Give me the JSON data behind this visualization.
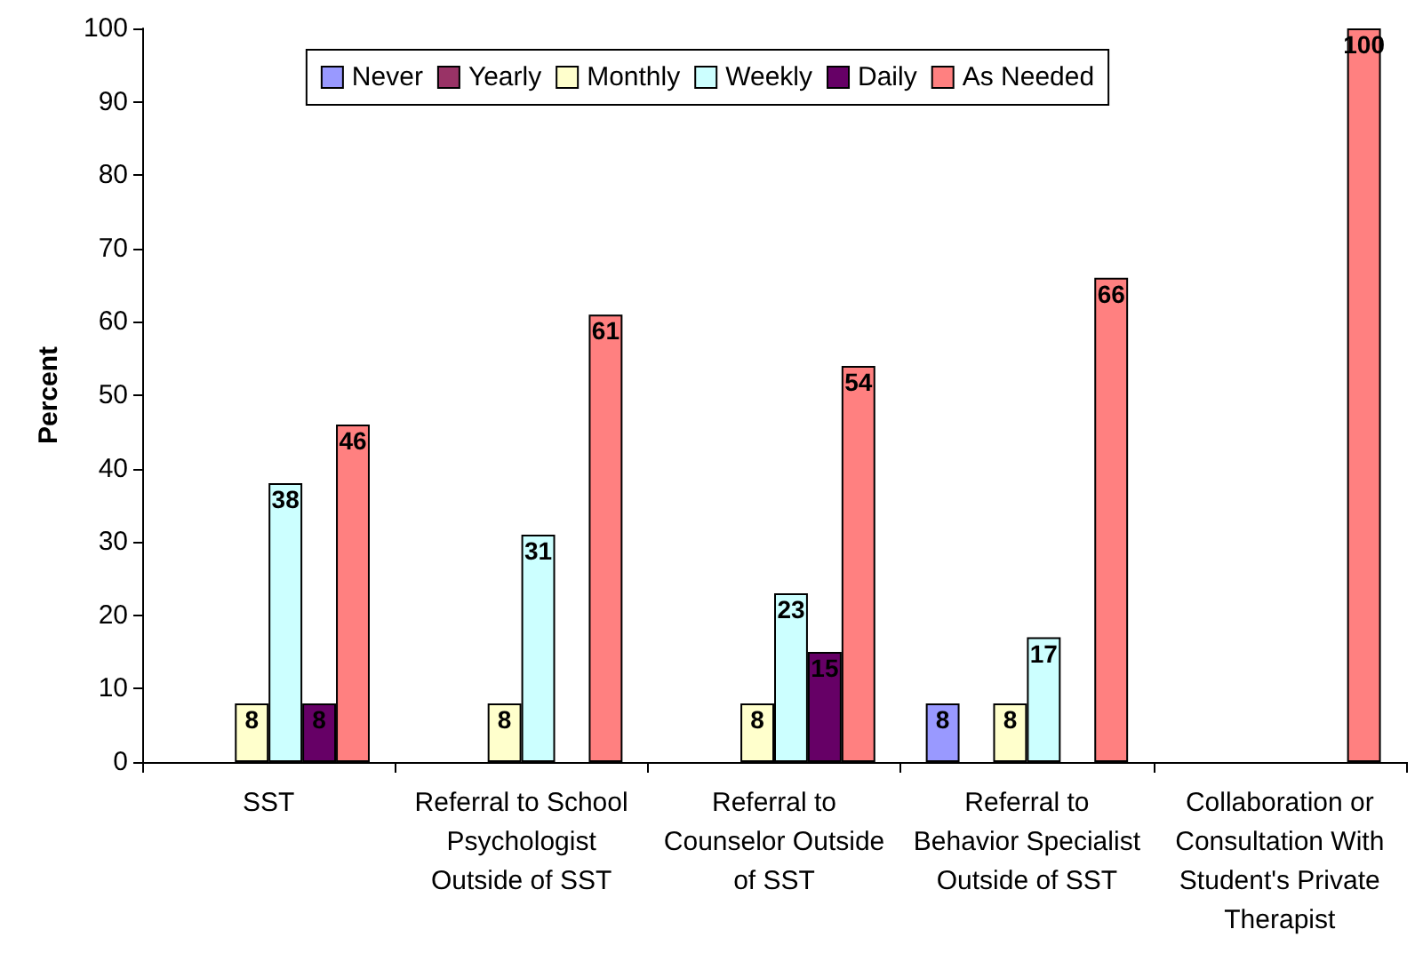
{
  "chart_data": {
    "type": "bar",
    "ylabel": "Percent",
    "categories": [
      "SST",
      "Referral to School\nPsychologist\nOutside of SST",
      "Referral to\nCounselor Outside\nof SST",
      "Referral to\nBehavior Specialist\nOutside of SST",
      "Collaboration or\nConsultation With\nStudent's Private\nTherapist"
    ],
    "series": [
      {
        "name": "Never",
        "color": "#9999ff",
        "values": [
          null,
          null,
          null,
          8,
          null
        ]
      },
      {
        "name": "Yearly",
        "color": "#993366",
        "values": [
          null,
          null,
          null,
          null,
          null
        ]
      },
      {
        "name": "Monthly",
        "color": "#ffffcc",
        "values": [
          8,
          8,
          8,
          8,
          null
        ]
      },
      {
        "name": "Weekly",
        "color": "#ccffff",
        "values": [
          38,
          31,
          23,
          17,
          null
        ]
      },
      {
        "name": "Daily",
        "color": "#660066",
        "values": [
          8,
          null,
          15,
          null,
          null
        ]
      },
      {
        "name": "As Needed",
        "color": "#ff8080",
        "values": [
          46,
          61,
          54,
          66,
          100
        ]
      }
    ],
    "ylim": [
      0,
      100
    ],
    "yticks": [
      0,
      10,
      20,
      30,
      40,
      50,
      60,
      70,
      80,
      90,
      100
    ],
    "grid": false,
    "legend": "top",
    "data_labels": true
  }
}
